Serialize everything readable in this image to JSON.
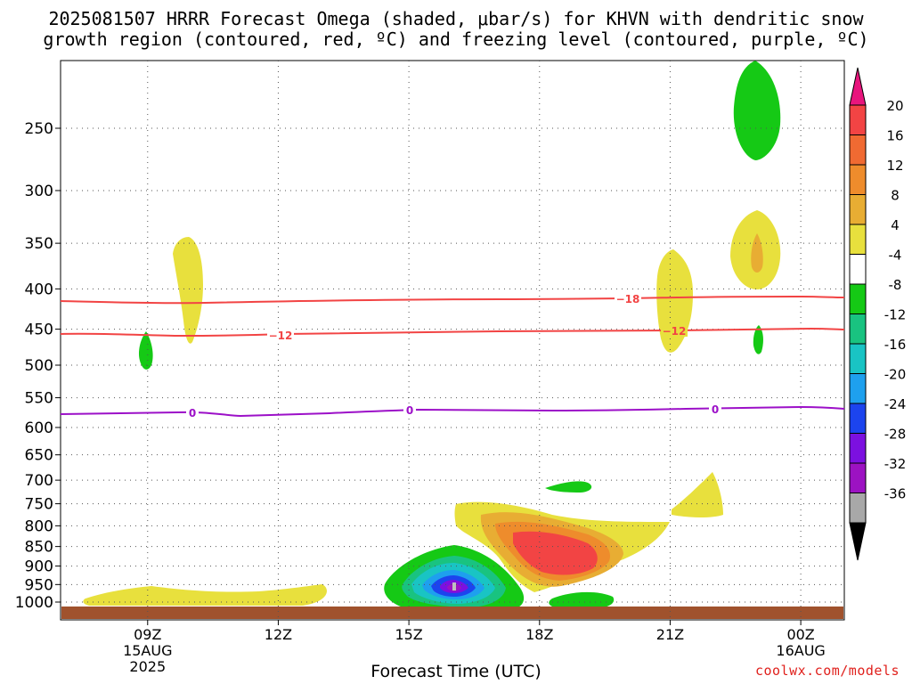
{
  "title_line1": "2025081507 HRRR Forecast Omega (shaded, μbar/s) for KHVN with dendritic snow",
  "title_line2": "growth region (contoured, red, ºC) and freezing level (contoured, purple, ºC)",
  "credit": "coolwx.com/models",
  "chart_data": {
    "type": "contour",
    "xlabel": "Forecast Time (UTC)",
    "x_ticks": [
      {
        "label": "09Z",
        "sub1": "15AUG",
        "sub2": "2025",
        "hour": 9
      },
      {
        "label": "12Z",
        "hour": 12
      },
      {
        "label": "15Z",
        "hour": 15
      },
      {
        "label": "18Z",
        "hour": 18
      },
      {
        "label": "21Z",
        "hour": 21
      },
      {
        "label": "00Z",
        "sub1": "16AUG",
        "hour": 24
      }
    ],
    "x_range_hours": [
      7,
      25
    ],
    "y_ticks": [
      "250",
      "300",
      "350",
      "400",
      "450",
      "500",
      "550",
      "600",
      "650",
      "700",
      "750",
      "800",
      "850",
      "900",
      "950",
      "1000"
    ],
    "y_axis": "pressure (hPa), log scale, reversed",
    "y_range_hpa": [
      200,
      1030
    ],
    "colorbar": {
      "labels": [
        "20",
        "16",
        "12",
        "8",
        "4",
        "-4",
        "-8",
        "-12",
        "-16",
        "-20",
        "-24",
        "-28",
        "-32",
        "-36"
      ],
      "colors": [
        "#e8157d",
        "#f24444",
        "#f06a32",
        "#ee8c2c",
        "#e8ad33",
        "#e8e03d",
        "#ffffff",
        "#15c915",
        "#19c380",
        "#19c4c4",
        "#1ea0ee",
        "#1c44ee",
        "#7c10e0",
        "#9c12c2",
        "#a8a8a8",
        "#000000"
      ]
    },
    "contours": [
      {
        "name": "-18",
        "color": "#f24444",
        "level_hpa": 412
      },
      {
        "name": "-12",
        "color": "#f24444",
        "level_hpa": 455
      },
      {
        "name": "0",
        "color": "#9c10c8",
        "level_hpa": 575
      }
    ],
    "ground_color": "#a0522d"
  }
}
